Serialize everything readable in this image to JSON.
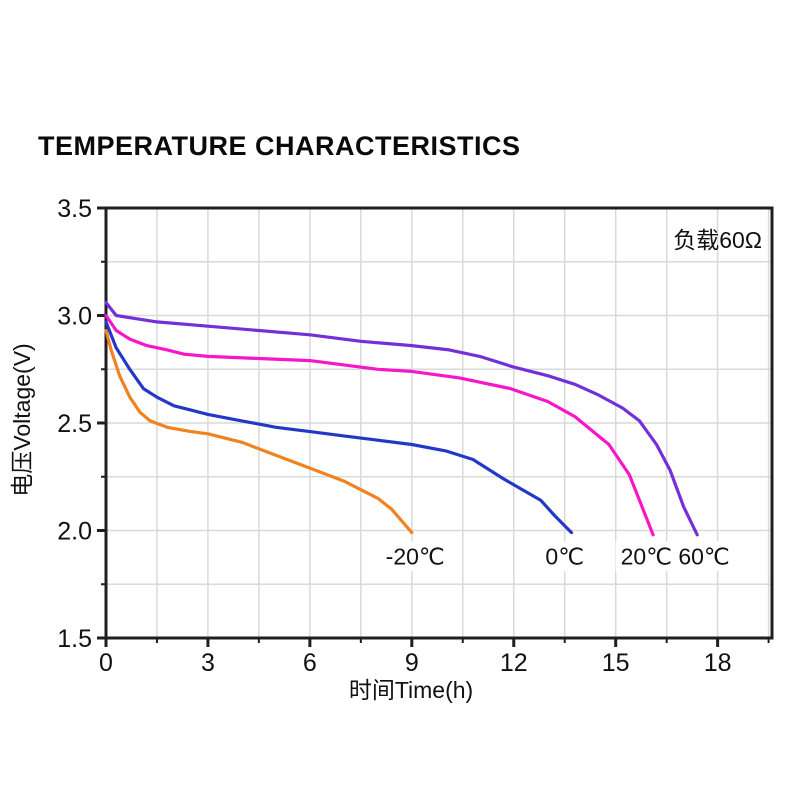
{
  "title": "TEMPERATURE CHARACTERISTICS",
  "chart_data": {
    "type": "line",
    "title": "TEMPERATURE CHARACTERISTICS",
    "xlabel": "时间Time(h)",
    "ylabel": "电压Voltage(V)",
    "annotation": "负载60Ω",
    "xlim": [
      0,
      19.6
    ],
    "ylim": [
      1.5,
      3.5
    ],
    "x_major_ticks": [
      0,
      3,
      6,
      9,
      12,
      15,
      18
    ],
    "x_minor_step": 1.5,
    "y_major_ticks": [
      1.5,
      2.0,
      2.5,
      3.0,
      3.5
    ],
    "y_minor_step": 0.25,
    "grid": {
      "x_step": 1.5,
      "y_step": 0.25,
      "on": true
    },
    "legend_position": "labels-near-curve-ends",
    "colors": {
      "grid": "#d9d9d9",
      "frame": "#1f1f1f",
      "text": "#111111",
      "background": "#ffffff"
    },
    "series": [
      {
        "name": "-20℃",
        "color": "#F08222",
        "label": {
          "t": 9.1,
          "v": 1.88
        },
        "points": [
          [
            0,
            2.93
          ],
          [
            0.15,
            2.84
          ],
          [
            0.4,
            2.72
          ],
          [
            0.7,
            2.62
          ],
          [
            1.0,
            2.55
          ],
          [
            1.3,
            2.51
          ],
          [
            1.8,
            2.48
          ],
          [
            2.5,
            2.46
          ],
          [
            3,
            2.45
          ],
          [
            4,
            2.41
          ],
          [
            5,
            2.35
          ],
          [
            6,
            2.29
          ],
          [
            7,
            2.23
          ],
          [
            8,
            2.15
          ],
          [
            8.4,
            2.1
          ],
          [
            9,
            1.99
          ]
        ]
      },
      {
        "name": "0℃",
        "color": "#2438C8",
        "label": {
          "t": 13.5,
          "v": 1.88
        },
        "points": [
          [
            0,
            2.97
          ],
          [
            0.3,
            2.85
          ],
          [
            0.7,
            2.75
          ],
          [
            1.1,
            2.66
          ],
          [
            1.5,
            2.62
          ],
          [
            2,
            2.58
          ],
          [
            2.5,
            2.56
          ],
          [
            3,
            2.54
          ],
          [
            4,
            2.51
          ],
          [
            5,
            2.48
          ],
          [
            6,
            2.46
          ],
          [
            7,
            2.44
          ],
          [
            8,
            2.42
          ],
          [
            9,
            2.4
          ],
          [
            10,
            2.37
          ],
          [
            10.8,
            2.33
          ],
          [
            11.7,
            2.24
          ],
          [
            12.8,
            2.14
          ],
          [
            13.2,
            2.07
          ],
          [
            13.7,
            1.99
          ]
        ]
      },
      {
        "name": "20℃",
        "color": "#F716C8",
        "label": {
          "t": 15.9,
          "v": 1.88
        },
        "points": [
          [
            0,
            3.0
          ],
          [
            0.3,
            2.93
          ],
          [
            0.7,
            2.89
          ],
          [
            1.2,
            2.86
          ],
          [
            1.8,
            2.84
          ],
          [
            2.3,
            2.82
          ],
          [
            3,
            2.81
          ],
          [
            4.5,
            2.8
          ],
          [
            6,
            2.79
          ],
          [
            7,
            2.77
          ],
          [
            8,
            2.75
          ],
          [
            9,
            2.74
          ],
          [
            10.4,
            2.71
          ],
          [
            11.9,
            2.66
          ],
          [
            13,
            2.6
          ],
          [
            13.8,
            2.53
          ],
          [
            14.8,
            2.4
          ],
          [
            15.4,
            2.26
          ],
          [
            15.8,
            2.1
          ],
          [
            16.1,
            1.98
          ]
        ]
      },
      {
        "name": "60℃",
        "color": "#7430D8",
        "label": {
          "t": 17.6,
          "v": 1.88
        },
        "points": [
          [
            0,
            3.06
          ],
          [
            0.3,
            3.0
          ],
          [
            1.5,
            2.97
          ],
          [
            3,
            2.95
          ],
          [
            4.5,
            2.93
          ],
          [
            6,
            2.91
          ],
          [
            7.5,
            2.88
          ],
          [
            9,
            2.86
          ],
          [
            10.1,
            2.84
          ],
          [
            11,
            2.81
          ],
          [
            12,
            2.76
          ],
          [
            13,
            2.72
          ],
          [
            13.8,
            2.68
          ],
          [
            14.5,
            2.63
          ],
          [
            15.2,
            2.57
          ],
          [
            15.7,
            2.51
          ],
          [
            16.2,
            2.4
          ],
          [
            16.6,
            2.28
          ],
          [
            17.0,
            2.11
          ],
          [
            17.4,
            1.98
          ]
        ]
      }
    ]
  },
  "layout_note": ""
}
